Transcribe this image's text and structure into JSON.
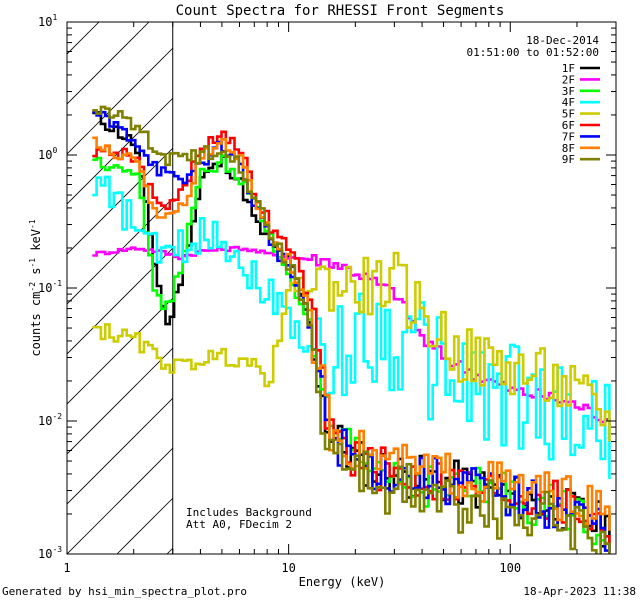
{
  "chart_data": {
    "type": "line",
    "title": "Count Spectra for RHESSI Front Segments",
    "xlabel": "Energy (keV)",
    "ylabel_main": "counts cm",
    "ylabel_sup1": "-2",
    "ylabel_mid1": " s",
    "ylabel_sup2": "-1",
    "ylabel_mid2": " keV",
    "ylabel_sup3": "-1",
    "xscale": "log",
    "yscale": "log",
    "xlim": [
      1,
      300
    ],
    "ylim": [
      0.001,
      10
    ],
    "x_ticks": [
      {
        "value": 1,
        "label": "1"
      },
      {
        "value": 10,
        "label": "10"
      },
      {
        "value": 100,
        "label": "100"
      }
    ],
    "y_ticks": [
      {
        "value": 10,
        "base": "10",
        "exp": "1"
      },
      {
        "value": 1,
        "base": "10",
        "exp": "0"
      },
      {
        "value": 0.1,
        "base": "10",
        "exp": "-1"
      },
      {
        "value": 0.01,
        "base": "10",
        "exp": "-2"
      },
      {
        "value": 0.001,
        "base": "10",
        "exp": "-3"
      }
    ],
    "excluded_region": {
      "from": 1,
      "to": 3
    },
    "info_date": "18-Dec-2014",
    "info_time": "01:51:00 to 01:52:00",
    "annotation_line1": "Includes Background",
    "annotation_line2": "Att A0, FDecim 2",
    "legend_position": "top-right",
    "series": [
      {
        "name": "1F",
        "color": "#000000",
        "noise": 0.35,
        "points": [
          [
            1.3,
            2.0
          ],
          [
            2.0,
            1.2
          ],
          [
            2.5,
            0.12
          ],
          [
            2.8,
            0.05
          ],
          [
            3.2,
            0.12
          ],
          [
            4.0,
            0.7
          ],
          [
            5.0,
            0.9
          ],
          [
            6.0,
            0.6
          ],
          [
            7.0,
            0.3
          ],
          [
            8.5,
            0.2
          ],
          [
            10,
            0.15
          ],
          [
            12,
            0.06
          ],
          [
            15,
            0.008
          ],
          [
            20,
            0.005
          ],
          [
            30,
            0.004
          ],
          [
            50,
            0.0035
          ],
          [
            80,
            0.003
          ],
          [
            120,
            0.0025
          ],
          [
            200,
            0.002
          ],
          [
            280,
            0.0015
          ]
        ]
      },
      {
        "name": "2F",
        "color": "#ff00ff",
        "noise": 0.1,
        "points": [
          [
            1.3,
            0.18
          ],
          [
            2.0,
            0.2
          ],
          [
            2.5,
            0.19
          ],
          [
            3.2,
            0.17
          ],
          [
            4.0,
            0.19
          ],
          [
            6.0,
            0.2
          ],
          [
            8.0,
            0.18
          ],
          [
            10,
            0.17
          ],
          [
            15,
            0.16
          ],
          [
            20,
            0.13
          ],
          [
            30,
            0.09
          ],
          [
            40,
            0.04
          ],
          [
            50,
            0.03
          ],
          [
            70,
            0.022
          ],
          [
            100,
            0.017
          ],
          [
            150,
            0.015
          ],
          [
            200,
            0.013
          ],
          [
            280,
            0.01
          ]
        ]
      },
      {
        "name": "3F",
        "color": "#00ff00",
        "noise": 0.35,
        "points": [
          [
            1.3,
            0.9
          ],
          [
            2.0,
            0.8
          ],
          [
            2.5,
            0.08
          ],
          [
            2.8,
            0.07
          ],
          [
            3.2,
            0.15
          ],
          [
            4.0,
            0.75
          ],
          [
            5.0,
            0.9
          ],
          [
            6.0,
            0.65
          ],
          [
            7.0,
            0.4
          ],
          [
            8.5,
            0.2
          ],
          [
            10,
            0.12
          ],
          [
            12,
            0.06
          ],
          [
            15,
            0.008
          ],
          [
            20,
            0.005
          ],
          [
            30,
            0.004
          ],
          [
            50,
            0.003
          ],
          [
            80,
            0.003
          ],
          [
            120,
            0.0025
          ],
          [
            200,
            0.002
          ],
          [
            280,
            0.0015
          ]
        ]
      },
      {
        "name": "4F",
        "color": "#00ffff",
        "noise": 0.9,
        "points": [
          [
            1.3,
            0.65
          ],
          [
            2.0,
            0.3
          ],
          [
            2.5,
            0.18
          ],
          [
            3.2,
            0.2
          ],
          [
            4.0,
            0.25
          ],
          [
            4.6,
            0.27
          ],
          [
            8.0,
            0.09
          ],
          [
            10,
            0.06
          ],
          [
            15,
            0.02
          ],
          [
            20,
            0.05
          ],
          [
            30,
            0.04
          ],
          [
            40,
            0.03
          ],
          [
            60,
            0.02
          ],
          [
            100,
            0.015
          ],
          [
            150,
            0.012
          ],
          [
            200,
            0.01
          ],
          [
            280,
            0.008
          ]
        ]
      },
      {
        "name": "5F",
        "color": "#cccc00",
        "noise": 0.45,
        "points": [
          [
            1.3,
            0.05
          ],
          [
            2.0,
            0.04
          ],
          [
            2.5,
            0.03
          ],
          [
            3.2,
            0.025
          ],
          [
            4.0,
            0.03
          ],
          [
            6.0,
            0.03
          ],
          [
            8.0,
            0.02
          ],
          [
            10,
            0.1
          ],
          [
            15,
            0.11
          ],
          [
            20,
            0.1
          ],
          [
            30,
            0.11
          ],
          [
            40,
            0.06
          ],
          [
            60,
            0.03
          ],
          [
            100,
            0.025
          ],
          [
            150,
            0.02
          ],
          [
            200,
            0.015
          ],
          [
            280,
            0.01
          ]
        ]
      },
      {
        "name": "6F",
        "color": "#ff0000",
        "noise": 0.35,
        "points": [
          [
            1.3,
            1.1
          ],
          [
            2.0,
            1.0
          ],
          [
            2.5,
            0.4
          ],
          [
            3.2,
            0.5
          ],
          [
            4.0,
            1.2
          ],
          [
            5.0,
            1.5
          ],
          [
            6.0,
            1.0
          ],
          [
            7.0,
            0.5
          ],
          [
            8.5,
            0.25
          ],
          [
            10,
            0.2
          ],
          [
            12,
            0.09
          ],
          [
            15,
            0.009
          ],
          [
            20,
            0.005
          ],
          [
            30,
            0.004
          ],
          [
            50,
            0.0035
          ],
          [
            80,
            0.003
          ],
          [
            120,
            0.0028
          ],
          [
            200,
            0.0022
          ],
          [
            280,
            0.0015
          ]
        ]
      },
      {
        "name": "7F",
        "color": "#0000ff",
        "noise": 0.35,
        "points": [
          [
            1.3,
            2.1
          ],
          [
            2.0,
            1.3
          ],
          [
            2.5,
            0.8
          ],
          [
            3.2,
            0.6
          ],
          [
            4.0,
            0.9
          ],
          [
            5.0,
            1.2
          ],
          [
            6.0,
            0.8
          ],
          [
            7.0,
            0.4
          ],
          [
            8.5,
            0.2
          ],
          [
            10,
            0.14
          ],
          [
            12,
            0.06
          ],
          [
            15,
            0.008
          ],
          [
            20,
            0.005
          ],
          [
            30,
            0.004
          ],
          [
            50,
            0.0035
          ],
          [
            80,
            0.003
          ],
          [
            120,
            0.0025
          ],
          [
            200,
            0.002
          ],
          [
            280,
            0.0015
          ]
        ]
      },
      {
        "name": "8F",
        "color": "#ff8000",
        "noise": 0.35,
        "points": [
          [
            1.3,
            1.2
          ],
          [
            2.0,
            0.9
          ],
          [
            2.5,
            0.35
          ],
          [
            3.2,
            0.4
          ],
          [
            4.0,
            0.95
          ],
          [
            5.0,
            1.3
          ],
          [
            6.0,
            0.9
          ],
          [
            7.0,
            0.45
          ],
          [
            8.5,
            0.22
          ],
          [
            10,
            0.16
          ],
          [
            12,
            0.07
          ],
          [
            15,
            0.009
          ],
          [
            20,
            0.006
          ],
          [
            30,
            0.0045
          ],
          [
            50,
            0.004
          ],
          [
            80,
            0.0035
          ],
          [
            120,
            0.003
          ],
          [
            200,
            0.0025
          ],
          [
            280,
            0.0018
          ]
        ]
      },
      {
        "name": "9F",
        "color": "#808000",
        "noise": 0.45,
        "points": [
          [
            1.3,
            2.2
          ],
          [
            2.0,
            1.8
          ],
          [
            2.5,
            1.0
          ],
          [
            3.2,
            0.9
          ],
          [
            4.0,
            1.0
          ],
          [
            5.0,
            1.2
          ],
          [
            6.0,
            0.85
          ],
          [
            7.0,
            0.45
          ],
          [
            8.5,
            0.22
          ],
          [
            10,
            0.15
          ],
          [
            12,
            0.06
          ],
          [
            15,
            0.006
          ],
          [
            20,
            0.004
          ],
          [
            30,
            0.003
          ],
          [
            50,
            0.0025
          ],
          [
            80,
            0.0022
          ],
          [
            120,
            0.002
          ],
          [
            200,
            0.0018
          ],
          [
            280,
            0.0012
          ]
        ]
      }
    ]
  },
  "footer": {
    "generated_by": "Generated by hsi_min_spectra_plot.pro",
    "timestamp": "18-Apr-2023 11:38"
  }
}
